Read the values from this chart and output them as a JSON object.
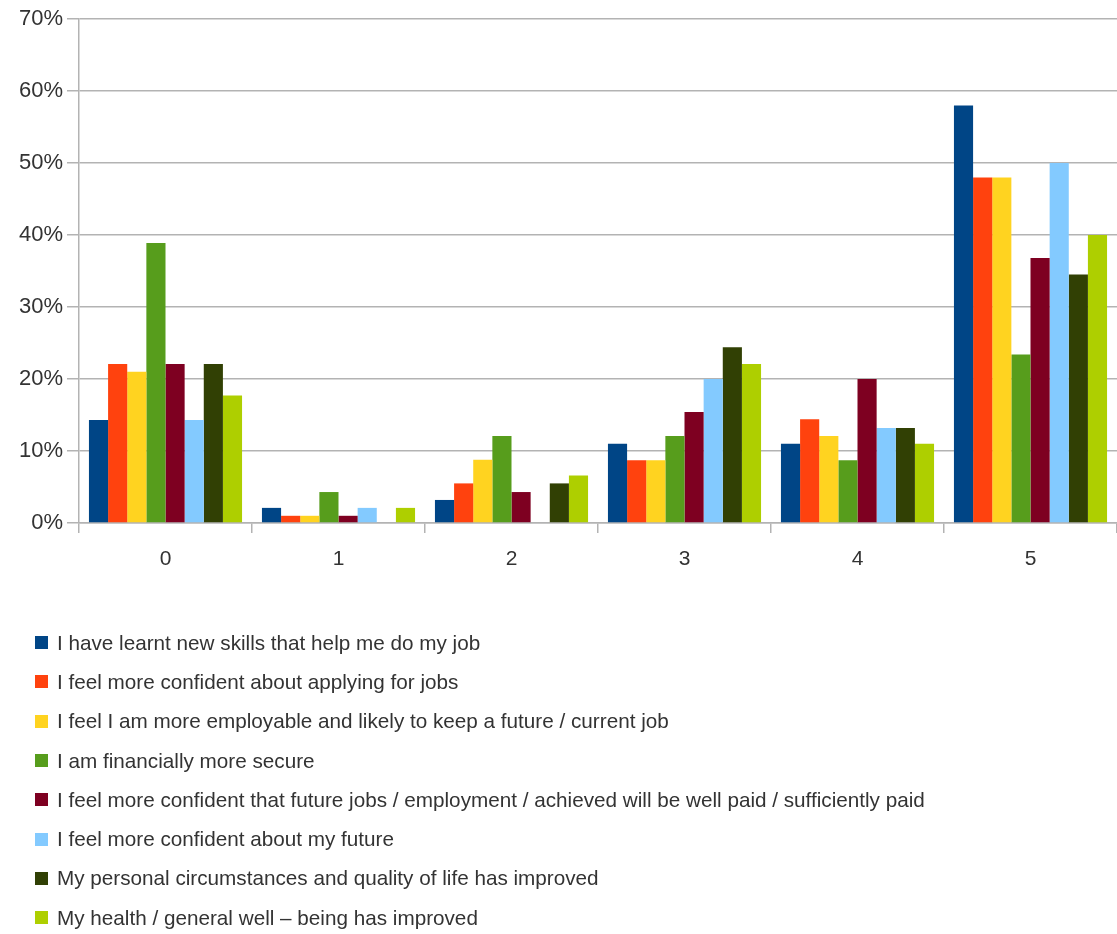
{
  "chart_data": {
    "type": "bar",
    "categories": [
      "0",
      "1",
      "2",
      "3",
      "4",
      "5"
    ],
    "series": [
      {
        "name": "I have learnt new skills that help me do my job",
        "color": "#004586",
        "values": [
          14.3,
          2.1,
          3.2,
          11.0,
          11.0,
          58.0
        ]
      },
      {
        "name": "I feel more confident about applying for jobs",
        "color": "#ff420e",
        "values": [
          22.1,
          1.0,
          5.5,
          8.7,
          14.4,
          48.0
        ]
      },
      {
        "name": "I feel I am more employable and likely to keep a future / current job",
        "color": "#ffd320",
        "values": [
          21.0,
          1.0,
          8.8,
          8.7,
          12.1,
          48.0
        ]
      },
      {
        "name": "I am financially more secure",
        "color": "#579d1c",
        "values": [
          38.9,
          4.3,
          12.1,
          12.1,
          8.7,
          23.4
        ]
      },
      {
        "name": "I feel more confident that future jobs / employment / achieved will be well paid / sufficiently paid",
        "color": "#7e0021",
        "values": [
          22.1,
          1.0,
          4.3,
          15.4,
          20.0,
          36.8
        ]
      },
      {
        "name": "I feel more confident about my future",
        "color": "#83caff",
        "values": [
          14.3,
          2.1,
          0,
          20.0,
          13.2,
          50.0
        ]
      },
      {
        "name": "My personal circumstances and quality of life has improved",
        "color": "#314004",
        "values": [
          22.1,
          0,
          5.5,
          24.4,
          13.2,
          34.5
        ]
      },
      {
        "name": "My health / general well – being has improved",
        "color": "#aecf00",
        "values": [
          17.7,
          2.1,
          6.6,
          22.1,
          11.0,
          40.0
        ]
      }
    ],
    "ylim": [
      0,
      70
    ],
    "yticks": [
      {
        "value": 0,
        "label": "0%"
      },
      {
        "value": 10,
        "label": "10%"
      },
      {
        "value": 20,
        "label": "20%"
      },
      {
        "value": 30,
        "label": "30%"
      },
      {
        "value": 40,
        "label": "40%"
      },
      {
        "value": 50,
        "label": "50%"
      },
      {
        "value": 60,
        "label": "60%"
      },
      {
        "value": 70,
        "label": "70%"
      }
    ],
    "grid": "y",
    "legend": "bottom"
  }
}
